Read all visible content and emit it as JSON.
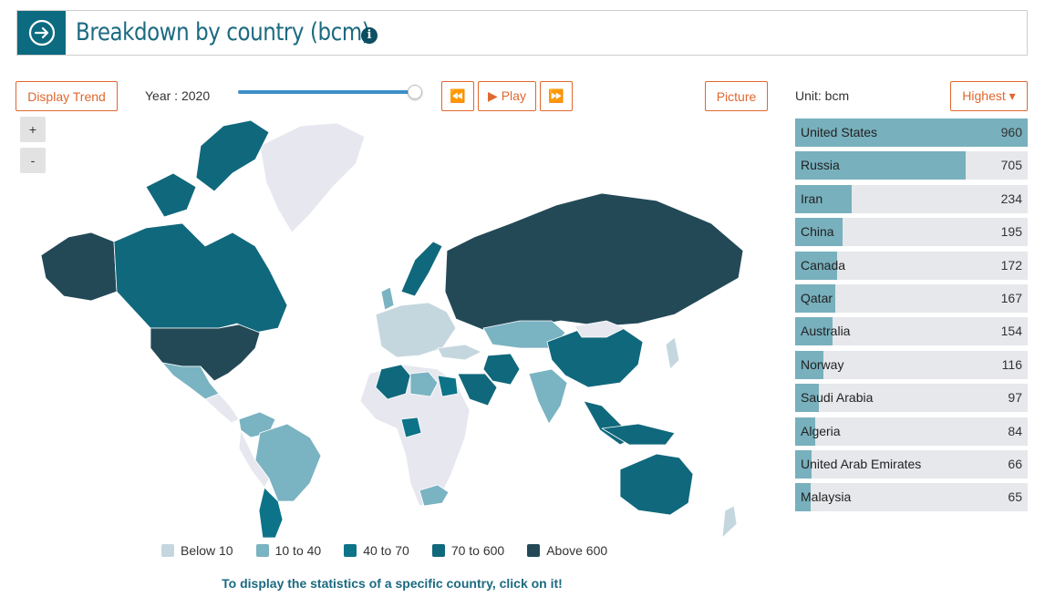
{
  "header": {
    "title": "Breakdown by country (bcm)",
    "icon": "arrow-circle-right-icon",
    "info_icon": "info-icon"
  },
  "controls": {
    "display_trend_label": "Display Trend",
    "year_label": "Year : 2020",
    "prev_icon": "⏪",
    "play_label": "▶ Play",
    "next_icon": "⏩",
    "picture_label": "Picture",
    "zoom_in": "+",
    "zoom_out": "-",
    "year_slider_position": 1.0
  },
  "ranking_header": {
    "unit_label": "Unit: bcm",
    "sort_label": "Highest ▾"
  },
  "ranking": [
    {
      "country": "United States",
      "value": 960
    },
    {
      "country": "Russia",
      "value": 705
    },
    {
      "country": "Iran",
      "value": 234
    },
    {
      "country": "China",
      "value": 195
    },
    {
      "country": "Canada",
      "value": 172
    },
    {
      "country": "Qatar",
      "value": 167
    },
    {
      "country": "Australia",
      "value": 154
    },
    {
      "country": "Norway",
      "value": 116
    },
    {
      "country": "Saudi Arabia",
      "value": 97
    },
    {
      "country": "Algeria",
      "value": 84
    },
    {
      "country": "United Arab Emirates",
      "value": 66
    },
    {
      "country": "Malaysia",
      "value": 65
    }
  ],
  "legend": [
    {
      "label": "Below 10",
      "color": "#c5d7de"
    },
    {
      "label": "10 to 40",
      "color": "#7ab3c2"
    },
    {
      "label": "40 to 70",
      "color": "#0d7388"
    },
    {
      "label": "70 to 600",
      "color": "#10687c"
    },
    {
      "label": "Above 600",
      "color": "#234957"
    }
  ],
  "colors": {
    "accent": "#e0672f",
    "brand": "#0c6b80",
    "bar": "#78b0bd",
    "bar_bg": "#e6e8eb",
    "no_data": "#e6e7ef"
  },
  "footnote": "To display the statistics of a specific country, click on it!"
}
